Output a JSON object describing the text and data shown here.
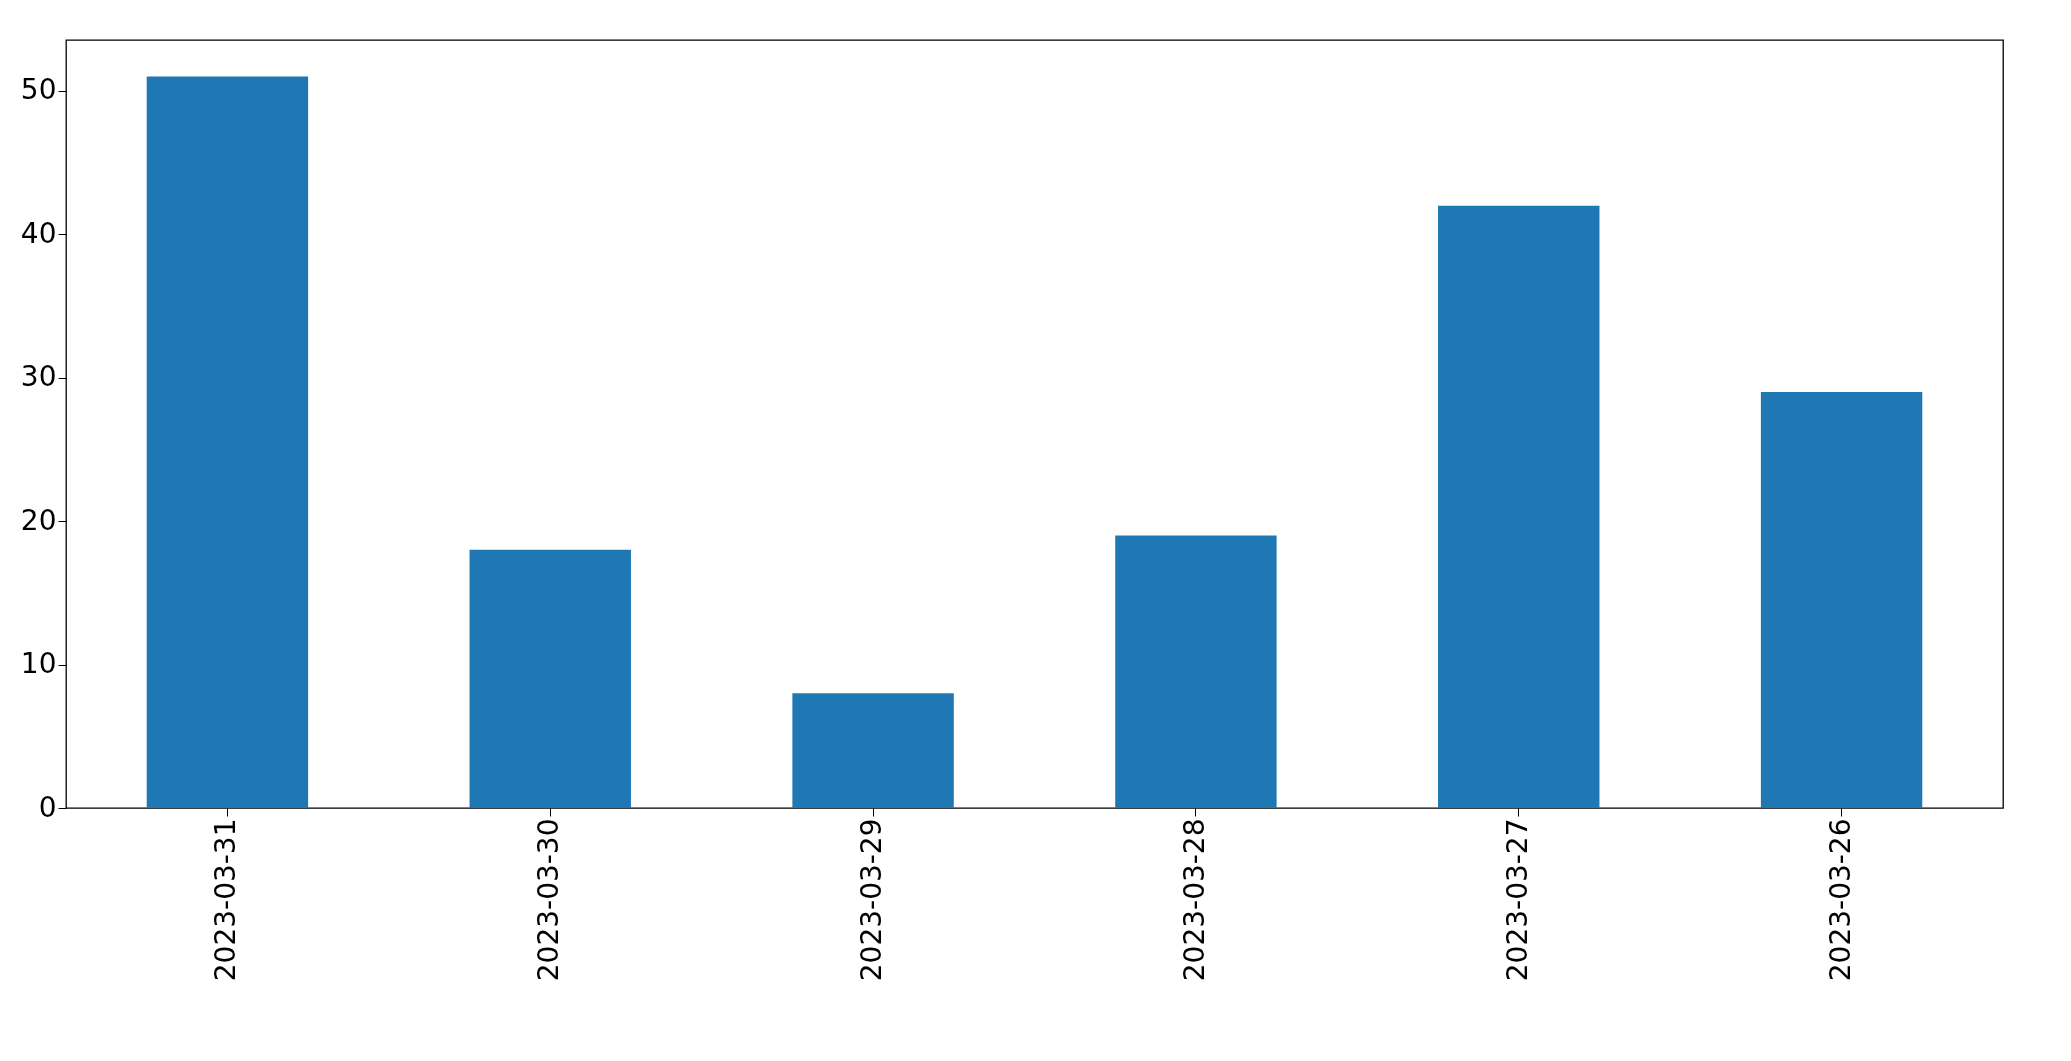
{
  "chart_data": {
    "type": "bar",
    "categories": [
      "2023-03-31",
      "2023-03-30",
      "2023-03-29",
      "2023-03-28",
      "2023-03-27",
      "2023-03-26"
    ],
    "values": [
      51,
      18,
      8,
      19,
      42,
      29
    ],
    "color": "#1f77b4",
    "ylim": [
      0,
      53.55
    ],
    "yticks": [
      0,
      10,
      20,
      30,
      40,
      50
    ],
    "grid": false
  }
}
